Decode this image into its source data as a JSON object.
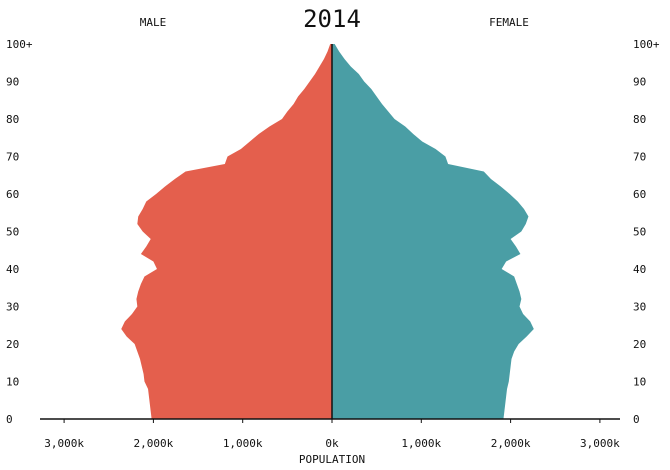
{
  "chart_data": {
    "type": "area",
    "subtype": "population-pyramid",
    "title": "2014",
    "xlabel": "POPULATION",
    "left_header": "MALE",
    "right_header": "FEMALE",
    "x_ticks": [
      {
        "value": -3000,
        "label": "3,000k"
      },
      {
        "value": -2000,
        "label": "2,000k"
      },
      {
        "value": -1000,
        "label": "1,000k"
      },
      {
        "value": 0,
        "label": "0k"
      },
      {
        "value": 1000,
        "label": "1,000k"
      },
      {
        "value": 2000,
        "label": "2,000k"
      },
      {
        "value": 3000,
        "label": "3,000k"
      }
    ],
    "y_ticks": [
      {
        "value": 0,
        "label": "0"
      },
      {
        "value": 10,
        "label": "10"
      },
      {
        "value": 20,
        "label": "20"
      },
      {
        "value": 30,
        "label": "30"
      },
      {
        "value": 40,
        "label": "40"
      },
      {
        "value": 50,
        "label": "50"
      },
      {
        "value": 60,
        "label": "60"
      },
      {
        "value": 70,
        "label": "70"
      },
      {
        "value": 80,
        "label": "80"
      },
      {
        "value": 90,
        "label": "90"
      },
      {
        "value": 100,
        "label": "100+"
      }
    ],
    "xlim": [
      -3200,
      3200
    ],
    "ylim": [
      0,
      100
    ],
    "series": [
      {
        "name": "MALE",
        "color": "#e45f4d",
        "points": [
          [
            0,
            2020
          ],
          [
            2,
            2030
          ],
          [
            4,
            2040
          ],
          [
            6,
            2050
          ],
          [
            8,
            2060
          ],
          [
            10,
            2100
          ],
          [
            12,
            2110
          ],
          [
            14,
            2130
          ],
          [
            16,
            2150
          ],
          [
            18,
            2180
          ],
          [
            20,
            2210
          ],
          [
            22,
            2300
          ],
          [
            24,
            2360
          ],
          [
            26,
            2320
          ],
          [
            28,
            2240
          ],
          [
            30,
            2180
          ],
          [
            32,
            2190
          ],
          [
            34,
            2170
          ],
          [
            36,
            2140
          ],
          [
            38,
            2100
          ],
          [
            40,
            1960
          ],
          [
            42,
            2000
          ],
          [
            44,
            2140
          ],
          [
            46,
            2080
          ],
          [
            48,
            2030
          ],
          [
            50,
            2120
          ],
          [
            52,
            2180
          ],
          [
            54,
            2170
          ],
          [
            56,
            2120
          ],
          [
            58,
            2080
          ],
          [
            60,
            1970
          ],
          [
            62,
            1870
          ],
          [
            64,
            1760
          ],
          [
            66,
            1640
          ],
          [
            68,
            1200
          ],
          [
            70,
            1170
          ],
          [
            72,
            1020
          ],
          [
            74,
            920
          ],
          [
            76,
            820
          ],
          [
            78,
            700
          ],
          [
            80,
            560
          ],
          [
            82,
            500
          ],
          [
            84,
            430
          ],
          [
            86,
            380
          ],
          [
            88,
            310
          ],
          [
            90,
            250
          ],
          [
            92,
            190
          ],
          [
            94,
            140
          ],
          [
            96,
            90
          ],
          [
            98,
            50
          ],
          [
            100,
            20
          ]
        ]
      },
      {
        "name": "FEMALE",
        "color": "#4a9ea5",
        "points": [
          [
            0,
            1920
          ],
          [
            2,
            1930
          ],
          [
            4,
            1940
          ],
          [
            6,
            1950
          ],
          [
            8,
            1960
          ],
          [
            10,
            1980
          ],
          [
            12,
            1990
          ],
          [
            14,
            2000
          ],
          [
            16,
            2010
          ],
          [
            18,
            2040
          ],
          [
            20,
            2090
          ],
          [
            22,
            2180
          ],
          [
            24,
            2260
          ],
          [
            26,
            2220
          ],
          [
            28,
            2140
          ],
          [
            30,
            2100
          ],
          [
            32,
            2120
          ],
          [
            34,
            2100
          ],
          [
            36,
            2070
          ],
          [
            38,
            2040
          ],
          [
            40,
            1900
          ],
          [
            42,
            1950
          ],
          [
            44,
            2110
          ],
          [
            46,
            2060
          ],
          [
            48,
            2000
          ],
          [
            50,
            2120
          ],
          [
            52,
            2170
          ],
          [
            54,
            2200
          ],
          [
            56,
            2150
          ],
          [
            58,
            2080
          ],
          [
            60,
            1990
          ],
          [
            62,
            1890
          ],
          [
            64,
            1780
          ],
          [
            66,
            1700
          ],
          [
            68,
            1300
          ],
          [
            70,
            1270
          ],
          [
            72,
            1160
          ],
          [
            74,
            1010
          ],
          [
            76,
            910
          ],
          [
            78,
            820
          ],
          [
            80,
            700
          ],
          [
            82,
            630
          ],
          [
            84,
            560
          ],
          [
            86,
            500
          ],
          [
            88,
            440
          ],
          [
            90,
            360
          ],
          [
            92,
            300
          ],
          [
            94,
            210
          ],
          [
            96,
            140
          ],
          [
            98,
            80
          ],
          [
            100,
            30
          ]
        ]
      }
    ],
    "axis_color": "#111111",
    "center_line_color": "#111111",
    "grid": false,
    "legend": "none"
  }
}
